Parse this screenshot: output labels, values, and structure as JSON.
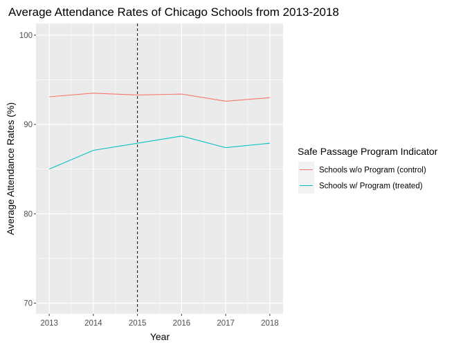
{
  "chart_data": {
    "type": "line",
    "title": "Average Attendance Rates of Chicago Schools from 2013-2018",
    "xlabel": "Year",
    "ylabel": "Average Attendance Rates (%)",
    "x": [
      2013,
      2014,
      2015,
      2016,
      2017,
      2018
    ],
    "x_ticks": [
      "2013",
      "2014",
      "2015",
      "2016",
      "2017",
      "2018"
    ],
    "y_ticks": [
      "70",
      "80",
      "90",
      "100"
    ],
    "xlim": [
      2012.7,
      2018.3
    ],
    "ylim": [
      68.8,
      101.3
    ],
    "grid": true,
    "vline": {
      "x": 2015,
      "style": "dashed",
      "color": "#000000"
    },
    "legend": {
      "title": "Safe Passage Program Indicator",
      "placement": "right"
    },
    "series": [
      {
        "name": "Schools w/o Program (control)",
        "color": "#F8766D",
        "values": [
          93.1,
          93.5,
          93.3,
          93.4,
          92.6,
          93.0
        ]
      },
      {
        "name": "Schools w/ Program (treated)",
        "color": "#00BFC4",
        "values": [
          85.0,
          87.1,
          87.9,
          88.7,
          87.4,
          87.9
        ]
      }
    ],
    "panel_background": "#EBEBEB",
    "gridline_color": "#FFFFFF"
  }
}
